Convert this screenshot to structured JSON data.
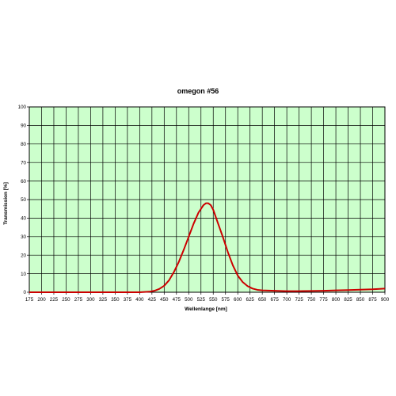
{
  "chart_data": {
    "type": "line",
    "title": "omegon #56",
    "xlabel": "Wellenlange [nm]",
    "ylabel": "Transmission [%]",
    "xlim": [
      175,
      900
    ],
    "ylim": [
      0,
      100
    ],
    "x_ticks": [
      175,
      200,
      225,
      250,
      275,
      300,
      325,
      350,
      375,
      400,
      425,
      450,
      475,
      500,
      525,
      550,
      575,
      600,
      625,
      650,
      675,
      700,
      725,
      750,
      775,
      800,
      825,
      850,
      875,
      900
    ],
    "y_ticks": [
      0,
      10,
      20,
      30,
      40,
      50,
      60,
      70,
      80,
      90,
      100
    ],
    "grid": true,
    "plot_background": "#ccffcc",
    "line_color": "#cc0000",
    "series": [
      {
        "x": [
          175,
          200,
          250,
          300,
          350,
          400,
          420,
          430,
          440,
          450,
          460,
          470,
          480,
          490,
          500,
          510,
          520,
          530,
          535,
          540,
          545,
          550,
          560,
          570,
          580,
          590,
          600,
          610,
          620,
          630,
          640,
          650,
          675,
          700,
          725,
          750,
          775,
          800,
          825,
          850,
          875,
          900
        ],
        "values": [
          0,
          0,
          0,
          0,
          0,
          0,
          0.3,
          0.8,
          1.8,
          3.5,
          6.5,
          11,
          16.5,
          23,
          30,
          37,
          43,
          47,
          48,
          48,
          47,
          44.5,
          37,
          29.5,
          21.5,
          14.5,
          9,
          5.5,
          3.3,
          2,
          1.3,
          1,
          0.8,
          0.6,
          0.6,
          0.7,
          0.8,
          1,
          1.2,
          1.4,
          1.6,
          2
        ]
      }
    ]
  }
}
